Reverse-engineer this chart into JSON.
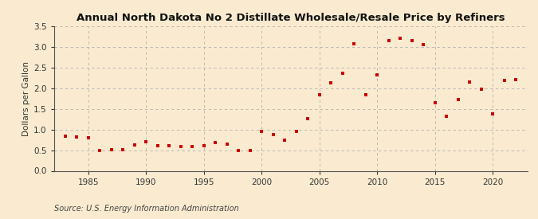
{
  "title": "Annual North Dakota No 2 Distillate Wholesale/Resale Price by Refiners",
  "ylabel": "Dollars per Gallon",
  "source": "Source: U.S. Energy Information Administration",
  "background_color": "#faebd0",
  "marker_color": "#cc0000",
  "xlim": [
    1982,
    2023
  ],
  "ylim": [
    0.0,
    3.5
  ],
  "yticks": [
    0.0,
    0.5,
    1.0,
    1.5,
    2.0,
    2.5,
    3.0,
    3.5
  ],
  "xticks": [
    1985,
    1990,
    1995,
    2000,
    2005,
    2010,
    2015,
    2020
  ],
  "years": [
    1983,
    1984,
    1985,
    1986,
    1987,
    1988,
    1989,
    1990,
    1991,
    1992,
    1993,
    1994,
    1995,
    1996,
    1997,
    1998,
    1999,
    2000,
    2001,
    2002,
    2003,
    2004,
    2005,
    2006,
    2007,
    2008,
    2009,
    2010,
    2011,
    2012,
    2013,
    2014,
    2015,
    2016,
    2017,
    2018,
    2019,
    2020,
    2021,
    2022
  ],
  "values": [
    0.84,
    0.82,
    0.8,
    0.49,
    0.52,
    0.51,
    0.62,
    0.7,
    0.61,
    0.6,
    0.59,
    0.59,
    0.6,
    0.68,
    0.65,
    0.5,
    0.49,
    0.95,
    0.88,
    0.75,
    0.95,
    1.26,
    1.84,
    2.13,
    2.37,
    3.07,
    1.85,
    2.33,
    3.16,
    3.22,
    3.16,
    3.05,
    1.65,
    1.32,
    1.72,
    2.15,
    1.97,
    1.37,
    2.18,
    2.2
  ],
  "title_fontsize": 9.5,
  "ylabel_fontsize": 7.5,
  "tick_fontsize": 7.5,
  "source_fontsize": 7,
  "marker_size": 12,
  "grid_color": "#b0b0b0",
  "spine_color": "#555555"
}
